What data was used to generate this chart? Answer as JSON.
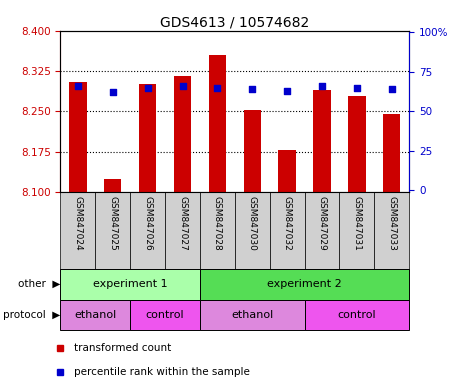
{
  "title": "GDS4613 / 10574682",
  "samples": [
    "GSM847024",
    "GSM847025",
    "GSM847026",
    "GSM847027",
    "GSM847028",
    "GSM847030",
    "GSM847032",
    "GSM847029",
    "GSM847031",
    "GSM847033"
  ],
  "bar_values": [
    8.305,
    8.125,
    8.3,
    8.315,
    8.355,
    8.253,
    8.178,
    8.29,
    8.278,
    8.245
  ],
  "percentile_values": [
    66,
    62,
    65,
    66,
    65,
    64,
    63,
    66,
    65,
    64
  ],
  "y_min": 8.1,
  "y_max": 8.4,
  "y_ticks": [
    8.1,
    8.175,
    8.25,
    8.325,
    8.4
  ],
  "y_right_ticks": [
    0,
    25,
    50,
    75,
    100
  ],
  "bar_color": "#cc0000",
  "marker_color": "#0000cc",
  "other_groups": [
    {
      "label": "experiment 1",
      "start": 0,
      "end": 4
    },
    {
      "label": "experiment 2",
      "start": 4,
      "end": 10
    }
  ],
  "other_colors": [
    "#aaffaa",
    "#55dd55"
  ],
  "protocol_groups": [
    {
      "label": "ethanol",
      "start": 0,
      "end": 2
    },
    {
      "label": "control",
      "start": 2,
      "end": 4
    },
    {
      "label": "ethanol",
      "start": 4,
      "end": 7
    },
    {
      "label": "control",
      "start": 7,
      "end": 10
    }
  ],
  "protocol_colors": [
    "#dd88dd",
    "#ee55ee",
    "#dd88dd",
    "#ee55ee"
  ],
  "axis_color_left": "#cc0000",
  "axis_color_right": "#0000cc",
  "grid_linestyle": "dotted",
  "grid_color": "#000000",
  "legend_labels": [
    "transformed count",
    "percentile rank within the sample"
  ],
  "legend_colors": [
    "#cc0000",
    "#0000cc"
  ]
}
